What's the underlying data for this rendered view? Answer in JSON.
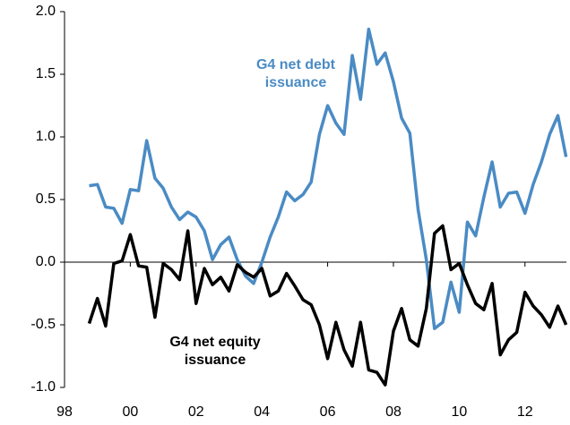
{
  "chart_data": {
    "type": "line",
    "x": [
      1998.75,
      1999,
      1999.25,
      1999.5,
      1999.75,
      2000,
      2000.25,
      2000.5,
      2000.75,
      2001,
      2001.25,
      2001.5,
      2001.75,
      2002,
      2002.25,
      2002.5,
      2002.75,
      2003,
      2003.25,
      2003.5,
      2003.75,
      2004,
      2004.25,
      2004.5,
      2004.75,
      2005,
      2005.25,
      2005.5,
      2005.75,
      2006,
      2006.25,
      2006.5,
      2006.75,
      2007,
      2007.25,
      2007.5,
      2007.75,
      2008,
      2008.25,
      2008.5,
      2008.75,
      2009,
      2009.25,
      2009.5,
      2009.75,
      2010,
      2010.25,
      2010.5,
      2010.75,
      2011,
      2011.25,
      2011.5,
      2011.75,
      2012,
      2012.25,
      2012.5,
      2012.75,
      2013,
      2013.25
    ],
    "series": [
      {
        "name": "G4 net debt issuance",
        "color": "#4a8bc4",
        "values": [
          0.61,
          0.62,
          0.44,
          0.43,
          0.31,
          0.58,
          0.57,
          0.97,
          0.67,
          0.59,
          0.44,
          0.34,
          0.4,
          0.36,
          0.25,
          0.02,
          0.14,
          0.2,
          0.02,
          -0.11,
          -0.17,
          0.0,
          0.2,
          0.36,
          0.56,
          0.49,
          0.54,
          0.64,
          1.02,
          1.25,
          1.11,
          1.02,
          1.65,
          1.3,
          1.86,
          1.58,
          1.67,
          1.44,
          1.15,
          1.03,
          0.42,
          0.02,
          -0.53,
          -0.48,
          -0.16,
          -0.4,
          0.32,
          0.21,
          0.52,
          0.8,
          0.44,
          0.55,
          0.56,
          0.39,
          0.62,
          0.8,
          1.02,
          1.17,
          0.84
        ]
      },
      {
        "name": "G4 net equity issuance",
        "color": "#000000",
        "values": [
          -0.49,
          -0.29,
          -0.51,
          -0.01,
          0.01,
          0.22,
          -0.03,
          -0.04,
          -0.44,
          -0.01,
          -0.06,
          -0.14,
          0.25,
          -0.33,
          -0.05,
          -0.18,
          -0.12,
          -0.23,
          -0.02,
          -0.08,
          -0.12,
          -0.05,
          -0.27,
          -0.23,
          -0.09,
          -0.19,
          -0.3,
          -0.34,
          -0.5,
          -0.77,
          -0.48,
          -0.7,
          -0.83,
          -0.48,
          -0.86,
          -0.88,
          -0.98,
          -0.55,
          -0.37,
          -0.62,
          -0.67,
          -0.37,
          0.23,
          0.29,
          -0.06,
          -0.01,
          -0.18,
          -0.33,
          -0.38,
          -0.17,
          -0.74,
          -0.62,
          -0.56,
          -0.24,
          -0.35,
          -0.42,
          -0.52,
          -0.35,
          -0.5
        ]
      }
    ],
    "annotations": [
      {
        "lines": [
          "G4 net debt",
          "issuance"
        ],
        "color": "#4a8bc4"
      },
      {
        "lines": [
          "G4 net equity",
          "issuance"
        ],
        "color": "#000000"
      }
    ],
    "xlim": [
      1998,
      2013.26
    ],
    "xticks": [
      {
        "value": 1998,
        "label": "98"
      },
      {
        "value": 2000,
        "label": "00"
      },
      {
        "value": 2002,
        "label": "02"
      },
      {
        "value": 2004,
        "label": "04"
      },
      {
        "value": 2006,
        "label": "06"
      },
      {
        "value": 2008,
        "label": "08"
      },
      {
        "value": 2010,
        "label": "10"
      },
      {
        "value": 2012,
        "label": "12"
      }
    ],
    "ylim": [
      -1,
      2
    ],
    "yticks": [
      {
        "value": -1,
        "label": "-1.0"
      },
      {
        "value": -0.5,
        "label": "-0.5"
      },
      {
        "value": 0,
        "label": "0.0"
      },
      {
        "value": 0.5,
        "label": "0.5"
      },
      {
        "value": 1,
        "label": "1.0"
      },
      {
        "value": 1.5,
        "label": "1.5"
      },
      {
        "value": 2,
        "label": "2.0"
      }
    ]
  }
}
